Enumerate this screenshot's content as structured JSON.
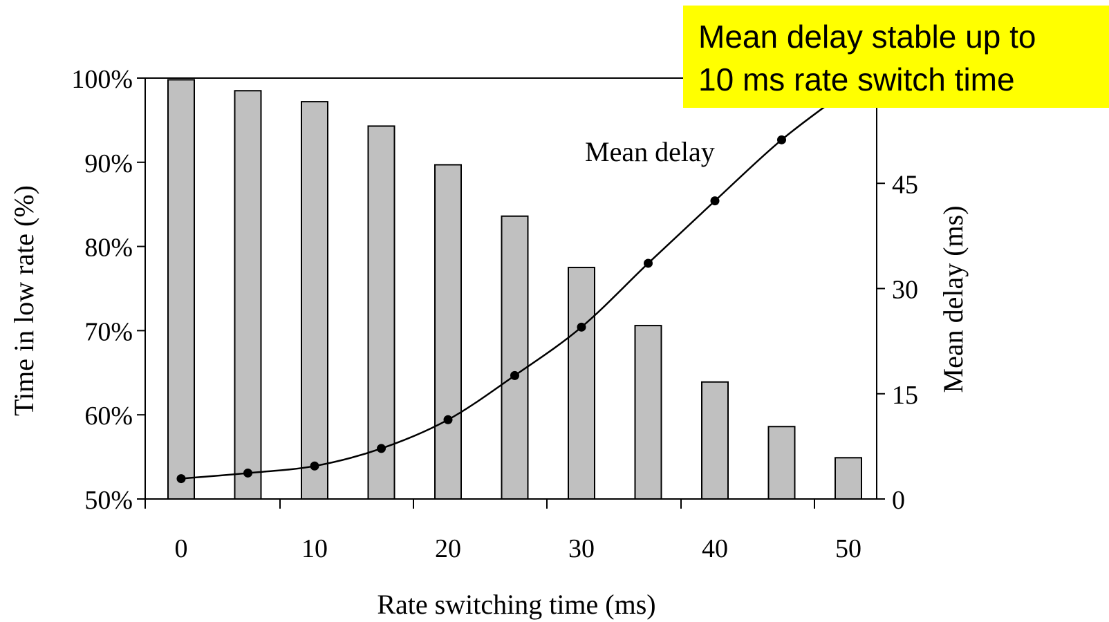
{
  "chart_data": {
    "type": "bar",
    "title": "",
    "xlabel": "Rate switching time (ms)",
    "ylabel": "Time in low rate (%)",
    "y2label": "Mean delay (ms)",
    "x_ticks": [
      "0",
      "10",
      "20",
      "30",
      "40",
      "50"
    ],
    "xlim": [
      0,
      50
    ],
    "ylim": [
      50,
      100
    ],
    "y_ticks": [
      50,
      60,
      70,
      80,
      90,
      100
    ],
    "y_tick_labels": [
      "50%",
      "60%",
      "70%",
      "80%",
      "90%",
      "100%"
    ],
    "y2lim": [
      0,
      60
    ],
    "y2_ticks": [
      "0",
      "15",
      "30",
      "45"
    ],
    "x": [
      0,
      5,
      10,
      15,
      20,
      25,
      30,
      35,
      40,
      45,
      50
    ],
    "series": [
      {
        "type": "bar",
        "axis": "left",
        "values": [
          99.8,
          98.5,
          97.2,
          94.3,
          89.7,
          83.6,
          77.5,
          70.6,
          63.9,
          58.6,
          54.9
        ]
      },
      {
        "type": "line",
        "name": "Mean delay",
        "axis": "right",
        "values": [
          2.9,
          3.7,
          4.7,
          7.2,
          11.3,
          17.6,
          24.5,
          33.6,
          42.5,
          51.2,
          58.4
        ]
      }
    ],
    "grid": false,
    "annotation": "Mean delay"
  },
  "callout": {
    "line1": "Mean delay stable up to",
    "line2": "10 ms rate switch time"
  },
  "colors": {
    "bar_fill": "#c0c0c0",
    "stroke": "#000000",
    "callout_bg": "#ffff00"
  }
}
